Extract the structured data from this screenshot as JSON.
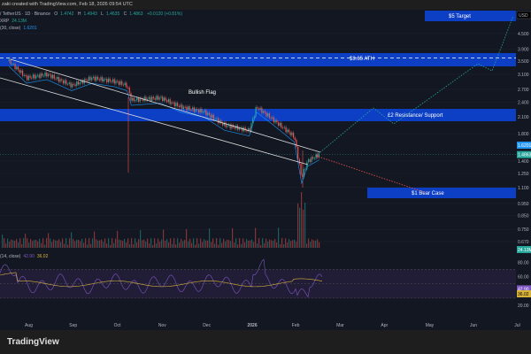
{
  "header": {
    "attribution": "zaki created with TradingView.com, Feb 18, 2026 09:54 UTC"
  },
  "legend": {
    "symbol": "/ TetherUS · 1D · Binance",
    "o_label": "O",
    "o": "1.4742",
    "h_label": "H",
    "h": "1.4943",
    "l_label": "L",
    "l": "1.4635",
    "c_label": "C",
    "c": "1.4863",
    "change": "+0.0120 (+0.81%)",
    "vol_label": "XRP",
    "vol": "24.13M",
    "ma_label": "(30, close)",
    "ma": "1.6201",
    "rsi_label": "(14, close)",
    "rsi": "42.90",
    "rsi_ma": "36.02"
  },
  "chart_data": {
    "type": "candlestick",
    "yscale": "log",
    "price_ticks": [
      "4.500",
      "3.900",
      "3.500",
      "3.100",
      "2.700",
      "2.400",
      "2.100",
      "1.800",
      "1.400",
      "1.250",
      "1.100",
      "0.950",
      "0.850",
      "0.750",
      "0.670"
    ],
    "rsi_ticks": [
      "80.00",
      "60.00",
      "20.00"
    ],
    "x_ticks": [
      "Aug",
      "Sep",
      "Oct",
      "Nov",
      "Dec",
      "2026",
      "Feb",
      "Mar",
      "Apr",
      "May",
      "Jun",
      "Jul"
    ],
    "currency": "USD",
    "closes": [
      {
        "d": "2025-07-20",
        "v": 3.5
      },
      {
        "d": "2025-08-01",
        "v": 3.0
      },
      {
        "d": "2025-08-15",
        "v": 3.1
      },
      {
        "d": "2025-09-01",
        "v": 2.8
      },
      {
        "d": "2025-09-15",
        "v": 3.0
      },
      {
        "d": "2025-10-01",
        "v": 2.9
      },
      {
        "d": "2025-10-09",
        "v": 2.8
      },
      {
        "d": "2025-10-12",
        "v": 2.45
      },
      {
        "d": "2025-11-01",
        "v": 2.5
      },
      {
        "d": "2025-11-15",
        "v": 2.3
      },
      {
        "d": "2025-12-01",
        "v": 2.2
      },
      {
        "d": "2025-12-15",
        "v": 1.95
      },
      {
        "d": "2026-01-01",
        "v": 1.85
      },
      {
        "d": "2026-01-06",
        "v": 2.3
      },
      {
        "d": "2026-01-15",
        "v": 2.1
      },
      {
        "d": "2026-02-01",
        "v": 1.75
      },
      {
        "d": "2026-02-06",
        "v": 1.2
      },
      {
        "d": "2026-02-10",
        "v": 1.4
      },
      {
        "d": "2026-02-18",
        "v": 1.4863
      }
    ],
    "badges": {
      "ma": "1.6201",
      "price": "1.4863",
      "volume": "24.13M",
      "rsi": "42.90",
      "rsi_ma": "36.02"
    },
    "annotations": {
      "pattern": "Bullish Flag",
      "target": "$5 Target",
      "ath": "$3.65 ATH",
      "resistance": "£2 Resistance/ Support",
      "bear": "$1 Bear Case"
    },
    "colors": {
      "zone": "#0d3fc4",
      "up": "#26a69a",
      "down": "#ef5350",
      "ma": "#2196f3",
      "rsi": "#7e57c2",
      "rsi_ma": "#d8b33a",
      "bull_path": "#26a69a",
      "bear_path": "#ef5350"
    }
  },
  "footer": {
    "brand": "TradingView"
  }
}
